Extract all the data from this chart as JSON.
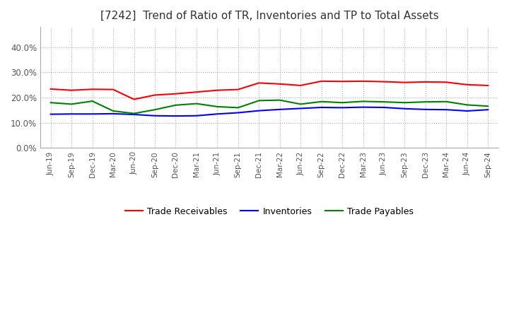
{
  "title": "[7242]  Trend of Ratio of TR, Inventories and TP to Total Assets",
  "x_labels": [
    "Jun-19",
    "Sep-19",
    "Dec-19",
    "Mar-20",
    "Jun-20",
    "Sep-20",
    "Dec-20",
    "Mar-21",
    "Jun-21",
    "Sep-21",
    "Dec-21",
    "Mar-22",
    "Jun-22",
    "Sep-22",
    "Dec-22",
    "Mar-23",
    "Jun-23",
    "Sep-23",
    "Dec-23",
    "Mar-24",
    "Jun-24",
    "Sep-24"
  ],
  "trade_receivables": [
    0.234,
    0.229,
    0.233,
    0.232,
    0.193,
    0.21,
    0.215,
    0.222,
    0.229,
    0.232,
    0.258,
    0.254,
    0.248,
    0.265,
    0.264,
    0.265,
    0.263,
    0.26,
    0.262,
    0.261,
    0.251,
    0.248
  ],
  "inventories": [
    0.134,
    0.135,
    0.135,
    0.136,
    0.133,
    0.128,
    0.127,
    0.128,
    0.135,
    0.14,
    0.148,
    0.153,
    0.157,
    0.161,
    0.16,
    0.162,
    0.161,
    0.156,
    0.153,
    0.152,
    0.147,
    0.152
  ],
  "trade_payables": [
    0.18,
    0.174,
    0.186,
    0.147,
    0.137,
    0.152,
    0.17,
    0.176,
    0.164,
    0.16,
    0.188,
    0.19,
    0.174,
    0.184,
    0.18,
    0.185,
    0.183,
    0.18,
    0.183,
    0.184,
    0.171,
    0.166
  ],
  "tr_color": "#FF0000",
  "inv_color": "#0000FF",
  "tp_color": "#008000",
  "ylim": [
    0.0,
    0.48
  ],
  "yticks": [
    0.0,
    0.1,
    0.2,
    0.3,
    0.4
  ],
  "background_color": "#FFFFFF",
  "grid_color": "#AAAAAA",
  "title_fontsize": 11,
  "legend_labels": [
    "Trade Receivables",
    "Inventories",
    "Trade Payables"
  ]
}
